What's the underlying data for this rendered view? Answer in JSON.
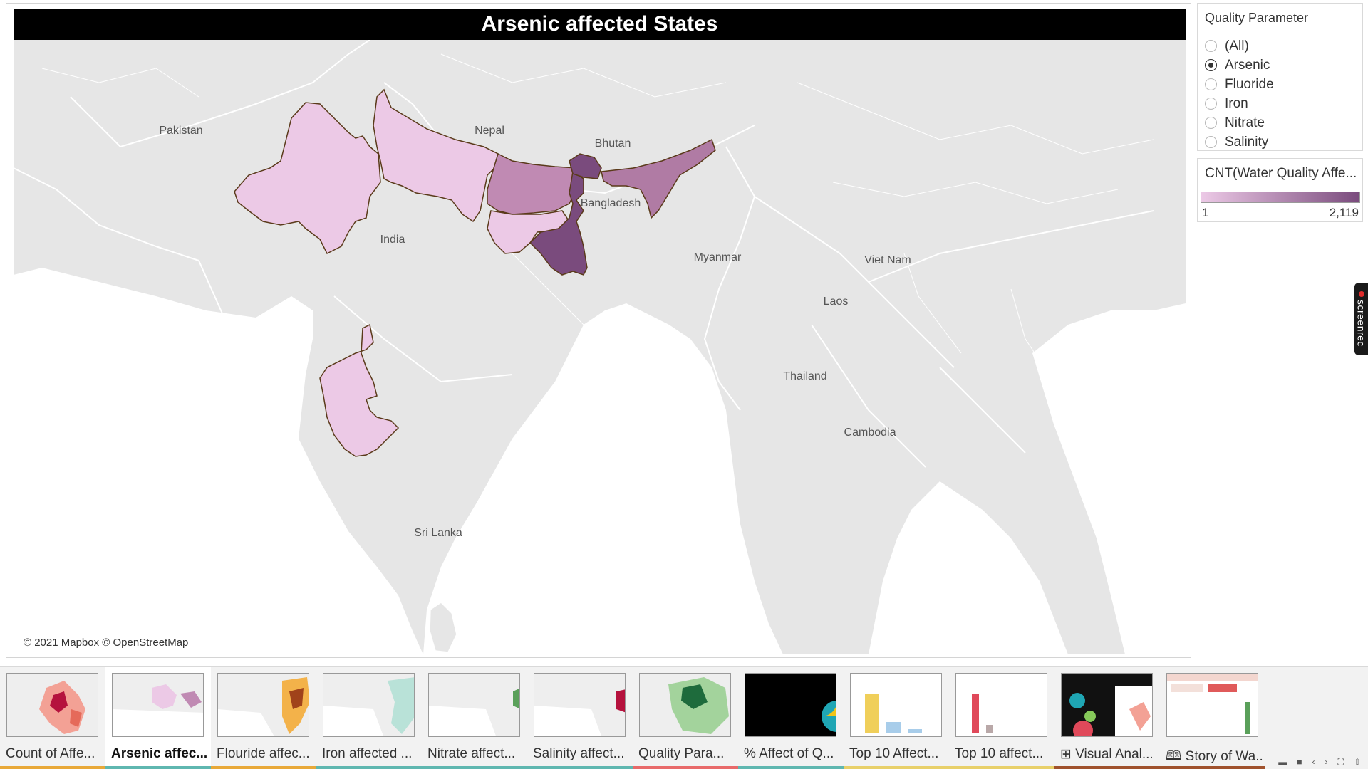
{
  "map": {
    "title": "Arsenic affected States",
    "attribution": "© 2021 Mapbox © OpenStreetMap",
    "country_labels": [
      "Pakistan",
      "Nepal",
      "Bhutan",
      "Bangladesh",
      "India",
      "Myanmar",
      "Viet Nam",
      "Laos",
      "Thailand",
      "Cambodia",
      "Sri Lanka"
    ],
    "colors": {
      "land": "#e6e6e6",
      "sea": "#ffffff",
      "border": "#ffffff",
      "state_outline": "#5a3a1a",
      "light": "#ecc9e6",
      "medium": "#c08ab3",
      "dark": "#7a4b7d"
    }
  },
  "filter": {
    "title": "Quality Parameter",
    "options": [
      {
        "label": "(All)",
        "selected": false
      },
      {
        "label": "Arsenic",
        "selected": true
      },
      {
        "label": "Fluoride",
        "selected": false
      },
      {
        "label": "Iron",
        "selected": false
      },
      {
        "label": "Nitrate",
        "selected": false
      },
      {
        "label": "Salinity",
        "selected": false
      }
    ]
  },
  "legend": {
    "title": "CNT(Water Quality Affe...",
    "min": "1",
    "max": "2,119",
    "color_low": "#ecc9e6",
    "color_high": "#7a4b7d"
  },
  "screenrec": {
    "label": "screenrec"
  },
  "story_tabs": [
    {
      "label": "Count of Affe...",
      "color": "#e8a838",
      "active": false
    },
    {
      "label": "Arsenic affec...",
      "color": "#5fb7b0",
      "active": true
    },
    {
      "label": "Flouride affec...",
      "color": "#e8a838",
      "active": false
    },
    {
      "label": "Iron affected ...",
      "color": "#5fb7b0",
      "active": false
    },
    {
      "label": "Nitrate affect...",
      "color": "#5fb7b0",
      "active": false
    },
    {
      "label": "Salinity affect...",
      "color": "#5fb7b0",
      "active": false
    },
    {
      "label": "Quality Para...",
      "color": "#e86a6a",
      "active": false
    },
    {
      "label": "% Affect of Q...",
      "color": "#5fb7b0",
      "active": false
    },
    {
      "label": "Top 10 Affect...",
      "color": "#e8d06a",
      "active": false
    },
    {
      "label": "Top 10 affect...",
      "color": "#e8d06a",
      "active": false
    },
    {
      "label": "⊞ Visual Anal...",
      "color": "#a0522d",
      "active": false
    },
    {
      "label": "🕮 Story of Wa...",
      "color": "#a0522d",
      "active": false
    }
  ]
}
